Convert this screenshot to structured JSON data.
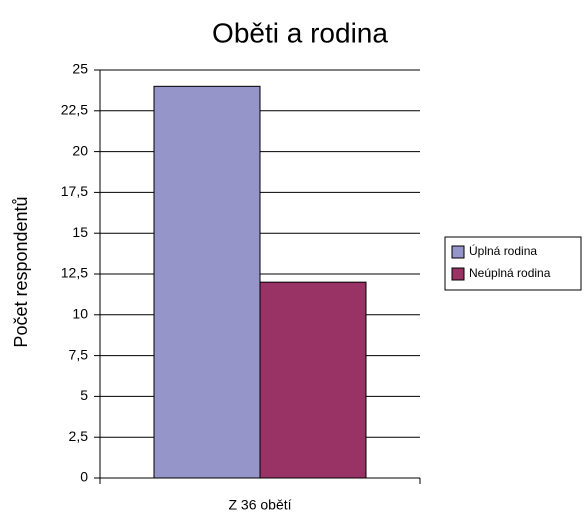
{
  "chart_data": {
    "type": "bar",
    "title": "Oběti a rodina",
    "y_label": "Počet respondentů",
    "categories": [
      "Z 36 obětí"
    ],
    "series": [
      {
        "name": "Úplná rodina",
        "color": "#9595c9",
        "values": [
          24
        ]
      },
      {
        "name": "Neúplná rodina",
        "color": "#993366",
        "values": [
          12
        ]
      }
    ],
    "ylim": [
      0,
      25
    ],
    "yticks": [
      0,
      {
        "value": 2.5,
        "label": "2,5"
      },
      5,
      {
        "value": 7.5,
        "label": "7,5"
      },
      10,
      {
        "value": 12.5,
        "label": "12,5"
      },
      15,
      {
        "value": 17.5,
        "label": "17,5"
      },
      20,
      {
        "value": 22.5,
        "label": "22,5"
      },
      25
    ],
    "grid": true,
    "legend": "right"
  }
}
